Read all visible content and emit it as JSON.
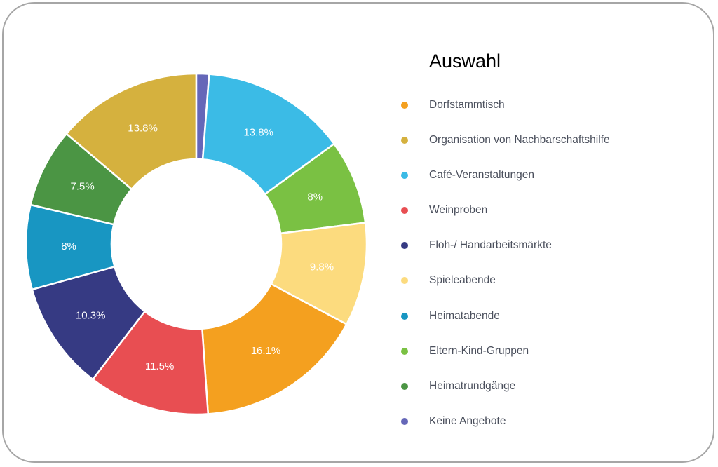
{
  "chart_data": {
    "type": "pie",
    "legend_title": "Auswahl",
    "legend_position": "right",
    "slices": [
      {
        "label": "Dorfstammtisch",
        "value": 16.1,
        "display": "16.1%",
        "color": "#F4A01F"
      },
      {
        "label": "Weinproben",
        "value": 11.5,
        "display": "11.5%",
        "color": "#E84E52"
      },
      {
        "label": "Floh-/ Handarbeitsmärkte",
        "value": 10.3,
        "display": "10.3%",
        "color": "#363A83"
      },
      {
        "label": "Heimatabende",
        "value": 8,
        "display": "8%",
        "color": "#1896C2"
      },
      {
        "label": "Heimatrundgänge",
        "value": 7.5,
        "display": "7.5%",
        "color": "#4B9544"
      },
      {
        "label": "Organisation von Nachbarschaftshilfe",
        "value": 13.8,
        "display": "13.8%",
        "color": "#D5B13E"
      },
      {
        "label": "Keine Angebote",
        "value": 1.2,
        "display": "",
        "color": "#6567B8"
      },
      {
        "label": "Café-Veranstaltungen",
        "value": 13.8,
        "display": "13.8%",
        "color": "#3BBBE6"
      },
      {
        "label": "Eltern-Kind-Gruppen",
        "value": 8,
        "display": "8%",
        "color": "#7AC143"
      },
      {
        "label": "Spieleabende",
        "value": 9.8,
        "display": "9.8%",
        "color": "#FCDB7E"
      }
    ]
  },
  "legend": [
    {
      "label": "Dorfstammtisch",
      "color": "#F4A01F"
    },
    {
      "label": "Organisation von Nachbarschaftshilfe",
      "color": "#D5B13E"
    },
    {
      "label": "Café-Veranstaltungen",
      "color": "#3BBBE6"
    },
    {
      "label": "Weinproben",
      "color": "#E84E52"
    },
    {
      "label": "Floh-/ Handarbeitsmärkte",
      "color": "#363A83"
    },
    {
      "label": "Spieleabende",
      "color": "#FCDB7E"
    },
    {
      "label": "Heimatabende",
      "color": "#1896C2"
    },
    {
      "label": "Eltern-Kind-Gruppen",
      "color": "#7AC143"
    },
    {
      "label": "Heimatrundgänge",
      "color": "#4B9544"
    },
    {
      "label": "Keine Angebote",
      "color": "#6567B8"
    }
  ]
}
